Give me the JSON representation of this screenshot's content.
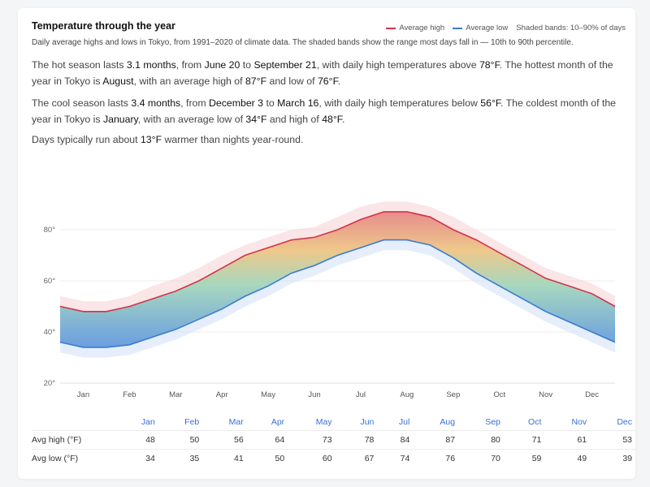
{
  "card": {
    "title": "Temperature through the year",
    "subtitle": "Daily average highs and lows in Tokyo, from 1991–2020 of climate data. The shaded bands show the range most days fall in — 10th to 90th percentile.",
    "legend": {
      "high_label": "Average high",
      "low_label": "Average low",
      "band_label": "Shaded bands: 10–90% of days",
      "high_color": "#d0344a",
      "low_color": "#3b7bd4"
    }
  },
  "paragraphs": {
    "p1": {
      "a": "The hot season lasts ",
      "b": "3.1 months",
      "c": ", from ",
      "d": "June 20",
      "e": " to ",
      "f": "September 21",
      "g": ", with daily high temperatures above ",
      "h": "78°F",
      "i": ". The hottest month of the year in Tokyo is ",
      "j": "August",
      "k": ", with an average high of ",
      "l": "87°F",
      "m": " and low of ",
      "n": "76°F",
      "o": "."
    },
    "p2": {
      "a": "The cool season lasts ",
      "b": "3.4 months",
      "c": ", from ",
      "d": "December 3",
      "e": " to ",
      "f": "March 16",
      "g": ", with daily high temperatures below ",
      "h": "56°F",
      "i": ". The coldest month of the year in Tokyo is ",
      "j": "January",
      "k": ", with an average low of ",
      "l": "34°F",
      "m": " and high of ",
      "n": "48°F",
      "o": "."
    },
    "p3": {
      "a": "Days typically run about ",
      "b": "13°F",
      "c": " warmer than nights year-round."
    }
  },
  "chart_data": {
    "type": "area",
    "x": [
      "Jan 1",
      "Jan 15",
      "Feb 1",
      "Feb 15",
      "Mar 1",
      "Mar 15",
      "Apr 1",
      "Apr 15",
      "May 1",
      "May 15",
      "Jun 1",
      "Jun 15",
      "Jul 1",
      "Jul 15",
      "Aug 1",
      "Aug 15",
      "Sep 1",
      "Sep 15",
      "Oct 1",
      "Oct 15",
      "Nov 1",
      "Nov 15",
      "Dec 1",
      "Dec 15",
      "Dec 31"
    ],
    "series": [
      {
        "name": "Average high",
        "values": [
          50,
          48,
          48,
          50,
          53,
          56,
          60,
          65,
          70,
          73,
          76,
          77,
          80,
          84,
          87,
          87,
          85,
          80,
          76,
          71,
          66,
          61,
          58,
          55,
          50
        ]
      },
      {
        "name": "Average low",
        "values": [
          36,
          34,
          34,
          35,
          38,
          41,
          45,
          49,
          54,
          58,
          63,
          66,
          70,
          73,
          76,
          76,
          74,
          69,
          63,
          58,
          53,
          48,
          44,
          40,
          36
        ]
      }
    ],
    "band_high_upper": [
      54,
      52,
      52,
      54,
      58,
      61,
      65,
      70,
      74,
      77,
      80,
      81,
      85,
      89,
      91,
      91,
      89,
      85,
      80,
      75,
      70,
      65,
      62,
      59,
      54
    ],
    "band_low_lower": [
      32,
      30,
      30,
      31,
      34,
      37,
      41,
      45,
      50,
      54,
      59,
      62,
      66,
      69,
      72,
      72,
      70,
      65,
      59,
      54,
      49,
      44,
      40,
      36,
      32
    ],
    "yticks": [
      "20°",
      "40°",
      "60°",
      "80°"
    ],
    "ylim": [
      20,
      100
    ],
    "months": [
      "Jan",
      "Feb",
      "Mar",
      "Apr",
      "May",
      "Jun",
      "Jul",
      "Aug",
      "Sep",
      "Oct",
      "Nov",
      "Dec"
    ],
    "grid": true
  },
  "table": {
    "months": [
      "Jan",
      "Feb",
      "Mar",
      "Apr",
      "May",
      "Jun",
      "Jul",
      "Aug",
      "Sep",
      "Oct",
      "Nov",
      "Dec"
    ],
    "rows": [
      {
        "label": "Avg high (°F)",
        "values": [
          "48",
          "50",
          "56",
          "64",
          "73",
          "78",
          "84",
          "87",
          "80",
          "71",
          "61",
          "53"
        ]
      },
      {
        "label": "Avg low (°F)",
        "values": [
          "34",
          "35",
          "41",
          "50",
          "60",
          "67",
          "74",
          "76",
          "70",
          "59",
          "49",
          "39"
        ]
      }
    ]
  }
}
